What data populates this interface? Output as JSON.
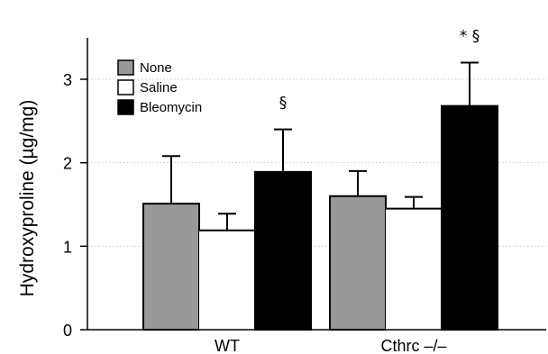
{
  "chart_data": {
    "type": "bar",
    "title": "",
    "xlabel": "",
    "ylabel": "Hydroxyproline (µg/mg)",
    "ylim": [
      0,
      3.5
    ],
    "yticks": [
      0,
      1,
      2,
      3
    ],
    "grid": "horizontal dotted at 1, 2, 3",
    "legend_position": "top-left",
    "categories": [
      "WT",
      "Cthrc –/–"
    ],
    "series": [
      {
        "name": "None",
        "color": "#999999",
        "values": [
          1.51,
          1.6
        ],
        "errors": [
          0.57,
          0.3
        ]
      },
      {
        "name": "Saline",
        "color": "#ffffff",
        "values": [
          1.19,
          1.45
        ],
        "errors": [
          0.2,
          0.14
        ]
      },
      {
        "name": "Bleomycin",
        "color": "#000000",
        "values": [
          1.89,
          2.68
        ],
        "errors": [
          0.51,
          0.52
        ]
      }
    ],
    "annotations": [
      {
        "category": 0,
        "series": 2,
        "text": "§"
      },
      {
        "category": 1,
        "series": 2,
        "text": "* §"
      }
    ]
  }
}
